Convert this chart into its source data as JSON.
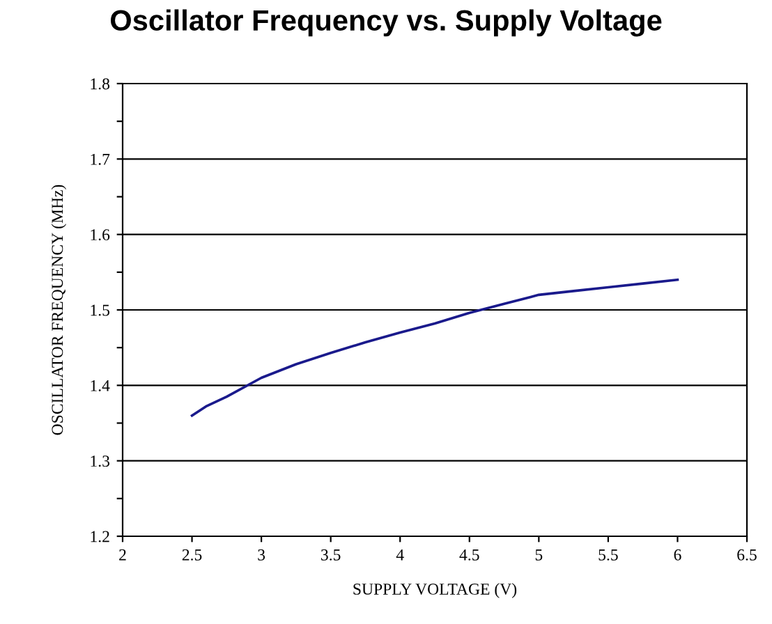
{
  "chart_data": {
    "type": "line",
    "title": "Oscillator Frequency vs. Supply Voltage",
    "xlabel": "SUPPLY VOLTAGE (V)",
    "ylabel": "OSCILLATOR FREQUENCY (MHz)",
    "x": [
      2.5,
      2.6,
      2.75,
      3,
      3.25,
      3.5,
      3.75,
      4,
      4.25,
      4.5,
      4.75,
      5,
      5.25,
      5.5,
      5.75,
      6
    ],
    "series": [
      {
        "color": "#1a1a8c",
        "values": [
          1.36,
          1.372,
          1.385,
          1.41,
          1.428,
          1.443,
          1.457,
          1.47,
          1.482,
          1.496,
          1.508,
          1.52,
          1.525,
          1.53,
          1.535,
          1.54
        ]
      }
    ],
    "xlim": [
      2,
      6.5
    ],
    "ylim": [
      1.2,
      1.8
    ],
    "xticks": [
      2,
      2.5,
      3,
      3.5,
      4,
      4.5,
      5,
      5.5,
      6,
      6.5
    ],
    "yticks": [
      1.2,
      {
        "value": 1.25,
        "label": null
      },
      1.3,
      {
        "value": 1.35,
        "label": null
      },
      1.4,
      {
        "value": 1.45,
        "label": null
      },
      1.5,
      {
        "value": 1.55,
        "label": null
      },
      1.6,
      {
        "value": 1.65,
        "label": null
      },
      1.7,
      {
        "value": 1.75,
        "label": null
      },
      1.8
    ],
    "grid": "y",
    "marker": "none",
    "line_style": "solid"
  }
}
